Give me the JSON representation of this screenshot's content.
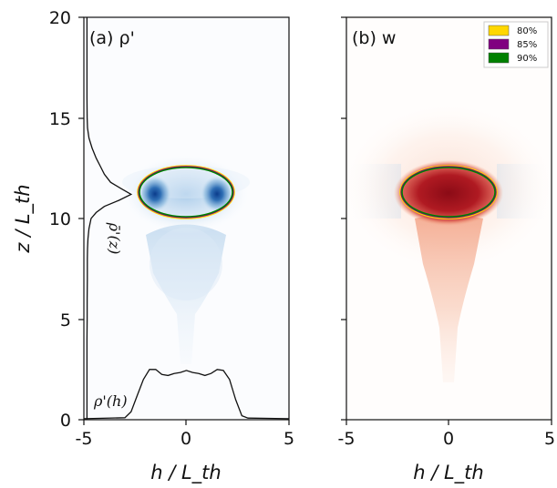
{
  "chart_data": [
    {
      "type": "heatmap",
      "panel_label": "(a) ρ'",
      "xlabel": "h / L_th",
      "ylabel": "z / L_th",
      "xlim": [
        -5,
        5
      ],
      "ylim": [
        0,
        20
      ],
      "x_ticks": [
        "-5",
        "0",
        "5"
      ],
      "y_ticks": [
        "0",
        "5",
        "10",
        "15",
        "20"
      ],
      "colormap": "Blues",
      "profile_z": {
        "label": "ρ̄'(z)",
        "baseline_x": -5,
        "points": [
          [
            0,
            -4.85
          ],
          [
            1,
            -4.85
          ],
          [
            2,
            -4.85
          ],
          [
            3,
            -4.85
          ],
          [
            4,
            -4.85
          ],
          [
            5,
            -4.84
          ],
          [
            6,
            -4.84
          ],
          [
            7,
            -4.83
          ],
          [
            8,
            -4.83
          ],
          [
            8.5,
            -4.82
          ],
          [
            9,
            -4.8
          ],
          [
            9.5,
            -4.75
          ],
          [
            10,
            -4.65
          ],
          [
            10.3,
            -4.4
          ],
          [
            10.6,
            -4.0
          ],
          [
            10.9,
            -3.3
          ],
          [
            11.2,
            -2.7
          ],
          [
            11.5,
            -3.2
          ],
          [
            11.8,
            -3.7
          ],
          [
            12.2,
            -4.0
          ],
          [
            12.6,
            -4.2
          ],
          [
            13.0,
            -4.4
          ],
          [
            13.5,
            -4.6
          ],
          [
            14.0,
            -4.75
          ],
          [
            14.5,
            -4.82
          ],
          [
            15,
            -4.84
          ],
          [
            16,
            -4.85
          ],
          [
            18,
            -4.85
          ],
          [
            20,
            -4.85
          ]
        ]
      },
      "profile_h": {
        "label": "ρ'(h)",
        "baseline_z": 0,
        "points": [
          [
            -5,
            0.05
          ],
          [
            -3,
            0.1
          ],
          [
            -2.7,
            0.4
          ],
          [
            -2.4,
            1.2
          ],
          [
            -2.1,
            2.0
          ],
          [
            -1.8,
            2.5
          ],
          [
            -1.5,
            2.5
          ],
          [
            -1.2,
            2.25
          ],
          [
            -0.9,
            2.2
          ],
          [
            -0.6,
            2.3
          ],
          [
            -0.3,
            2.35
          ],
          [
            0,
            2.45
          ],
          [
            0.3,
            2.35
          ],
          [
            0.6,
            2.3
          ],
          [
            0.9,
            2.2
          ],
          [
            1.2,
            2.3
          ],
          [
            1.5,
            2.5
          ],
          [
            1.8,
            2.45
          ],
          [
            2.1,
            2.0
          ],
          [
            2.4,
            1.0
          ],
          [
            2.7,
            0.2
          ],
          [
            3,
            0.08
          ],
          [
            5,
            0.05
          ]
        ]
      },
      "ellipse": {
        "center": [
          0,
          11.3
        ],
        "rx": 2.4,
        "ry": 1.3
      }
    },
    {
      "type": "heatmap",
      "panel_label": "(b) w",
      "xlabel": "h / L_th",
      "xlim": [
        -5,
        5
      ],
      "ylim": [
        0,
        20
      ],
      "x_ticks": [
        "-5",
        "0",
        "5"
      ],
      "colormap": "RdBu_r",
      "ellipse": {
        "center": [
          0,
          11.3
        ],
        "rx": 2.4,
        "ry": 1.3
      },
      "legend": {
        "placement": "top-right",
        "entries": [
          {
            "label": "80%",
            "color": "#ffd700"
          },
          {
            "label": "85%",
            "color": "#800080"
          },
          {
            "label": "90%",
            "color": "#008000"
          }
        ]
      }
    }
  ]
}
